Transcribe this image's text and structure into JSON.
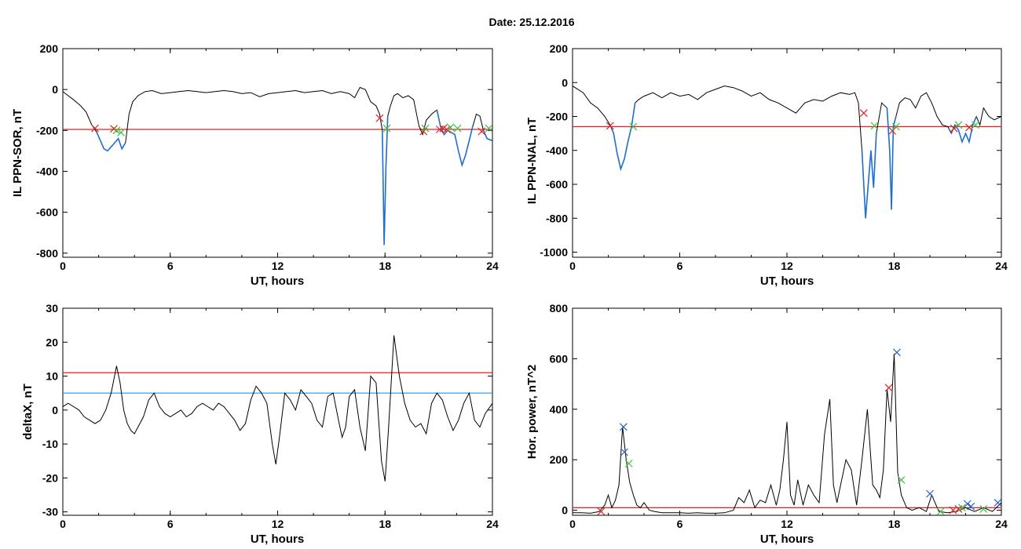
{
  "figure": {
    "title": "Date:  25.12.2016"
  },
  "colors": {
    "axis": "#000000",
    "trace": "#000000",
    "highlight": "#1f6fd0",
    "red": "#e02020",
    "green": "#40c040",
    "blue": "#2060d0",
    "cyan": "#2a8fd8"
  },
  "chart_data": [
    {
      "id": "p1",
      "type": "line",
      "xlabel": "UT, hours",
      "ylabel": "IL PPN-SOR, nT",
      "xlim": [
        0,
        24
      ],
      "ylim": [
        -820,
        200
      ],
      "xticks": [
        0,
        6,
        12,
        18,
        24
      ],
      "yticks": [
        200,
        0,
        -200,
        -400,
        -600,
        -800
      ],
      "threshold_lines": [
        {
          "y": -195,
          "color": "red"
        }
      ],
      "series": [
        {
          "x": [
            0,
            0.3,
            0.6,
            1.0,
            1.3,
            1.6,
            1.9,
            2.1,
            2.3,
            2.5,
            2.7,
            2.9,
            3.1,
            3.3,
            3.5,
            3.7,
            3.9,
            4.2,
            4.6,
            5.0,
            5.5,
            6.0,
            6.5,
            7.0,
            7.5,
            8.0,
            8.5,
            9.0,
            9.5,
            10.0,
            10.5,
            11.0,
            11.5,
            12.0,
            12.5,
            13.0,
            13.5,
            14.0,
            14.5,
            15.0,
            15.5,
            16.0,
            16.3,
            16.6,
            16.9,
            17.2,
            17.5,
            17.7,
            17.85,
            17.95,
            18.05,
            18.15,
            18.3,
            18.5,
            18.7,
            19.0,
            19.3,
            19.6,
            19.9,
            20.1,
            20.3,
            20.6,
            20.9,
            21.1,
            21.3,
            21.5,
            21.7,
            21.9,
            22.1,
            22.3,
            22.5,
            22.7,
            22.9,
            23.1,
            23.3,
            23.5,
            23.7,
            24.0
          ],
          "y": [
            -10,
            -30,
            -50,
            -80,
            -110,
            -170,
            -210,
            -250,
            -290,
            -300,
            -280,
            -260,
            -240,
            -290,
            -260,
            -120,
            -60,
            -30,
            -10,
            -5,
            -20,
            -15,
            -10,
            -5,
            -10,
            -15,
            -10,
            -5,
            -10,
            -20,
            -15,
            -35,
            -20,
            -15,
            -10,
            -5,
            -15,
            -10,
            -5,
            -20,
            -10,
            -20,
            -40,
            10,
            0,
            -60,
            -80,
            -120,
            -200,
            -760,
            -380,
            -130,
            -80,
            -30,
            -20,
            -40,
            -30,
            -50,
            -180,
            -220,
            -150,
            -120,
            -100,
            -180,
            -220,
            -200,
            -210,
            -220,
            -300,
            -370,
            -320,
            -250,
            -180,
            -120,
            -130,
            -200,
            -240,
            -250
          ],
          "highlight_ranges": [
            [
              1.9,
              3.6
            ],
            [
              17.85,
              18.25
            ],
            [
              20.9,
              22.9
            ],
            [
              23.5,
              24
            ]
          ]
        }
      ],
      "markers": [
        {
          "x": 1.8,
          "y": -190,
          "color": "red"
        },
        {
          "x": 2.85,
          "y": -192,
          "color": "red"
        },
        {
          "x": 3.0,
          "y": -200,
          "color": "green"
        },
        {
          "x": 3.25,
          "y": -210,
          "color": "green"
        },
        {
          "x": 17.7,
          "y": -140,
          "color": "red"
        },
        {
          "x": 18.1,
          "y": -190,
          "color": "green"
        },
        {
          "x": 20.15,
          "y": -205,
          "color": "red"
        },
        {
          "x": 20.25,
          "y": -190,
          "color": "green"
        },
        {
          "x": 21.05,
          "y": -195,
          "color": "red"
        },
        {
          "x": 21.25,
          "y": -190,
          "color": "red"
        },
        {
          "x": 21.45,
          "y": -195,
          "color": "red"
        },
        {
          "x": 21.65,
          "y": -185,
          "color": "green"
        },
        {
          "x": 22.05,
          "y": -190,
          "color": "green"
        },
        {
          "x": 23.4,
          "y": -205,
          "color": "red"
        },
        {
          "x": 23.8,
          "y": -190,
          "color": "green"
        }
      ]
    },
    {
      "id": "p2",
      "type": "line",
      "xlabel": "UT, hours",
      "ylabel": "IL PPN-NAL, nT",
      "xlim": [
        0,
        24
      ],
      "ylim": [
        -1030,
        200
      ],
      "xticks": [
        0,
        6,
        12,
        18,
        24
      ],
      "yticks": [
        200,
        0,
        -200,
        -400,
        -600,
        -800,
        -1000
      ],
      "threshold_lines": [
        {
          "y": -260,
          "color": "red"
        }
      ],
      "series": [
        {
          "x": [
            0,
            0.3,
            0.6,
            1.0,
            1.4,
            1.8,
            2.1,
            2.3,
            2.5,
            2.7,
            2.9,
            3.1,
            3.3,
            3.5,
            3.7,
            4.0,
            4.5,
            5.0,
            5.5,
            6.0,
            6.5,
            7.0,
            7.5,
            8.0,
            8.5,
            9.0,
            9.5,
            10.0,
            10.5,
            11.0,
            11.5,
            12.0,
            12.5,
            13.0,
            13.5,
            14.0,
            14.5,
            15.0,
            15.5,
            15.8,
            16.0,
            16.2,
            16.4,
            16.55,
            16.7,
            16.85,
            17.0,
            17.3,
            17.6,
            17.75,
            17.85,
            17.95,
            18.1,
            18.3,
            18.6,
            18.9,
            19.2,
            19.5,
            19.8,
            20.1,
            20.4,
            20.7,
            21.0,
            21.2,
            21.4,
            21.6,
            21.8,
            22.0,
            22.2,
            22.4,
            22.6,
            22.8,
            23.0,
            23.3,
            23.6,
            24.0
          ],
          "y": [
            -20,
            -40,
            -60,
            -120,
            -150,
            -200,
            -250,
            -300,
            -420,
            -510,
            -450,
            -350,
            -260,
            -120,
            -100,
            -80,
            -60,
            -90,
            -60,
            -80,
            -70,
            -100,
            -60,
            -40,
            -20,
            -30,
            -50,
            -80,
            -60,
            -100,
            -120,
            -150,
            -180,
            -120,
            -100,
            -110,
            -80,
            -60,
            -70,
            -60,
            -120,
            -400,
            -800,
            -600,
            -400,
            -620,
            -300,
            -120,
            -150,
            -400,
            -750,
            -260,
            -200,
            -120,
            -90,
            -100,
            -150,
            -80,
            -60,
            -120,
            -200,
            -250,
            -260,
            -300,
            -250,
            -280,
            -350,
            -300,
            -350,
            -250,
            -200,
            -250,
            -150,
            -200,
            -220,
            -200
          ],
          "highlight_ranges": [
            [
              2.0,
              3.6
            ],
            [
              16.1,
              17.1
            ],
            [
              17.6,
              18.1
            ],
            [
              21.2,
              22.7
            ]
          ]
        }
      ],
      "markers": [
        {
          "x": 2.1,
          "y": -255,
          "color": "red"
        },
        {
          "x": 3.4,
          "y": -260,
          "color": "green"
        },
        {
          "x": 16.3,
          "y": -180,
          "color": "red"
        },
        {
          "x": 16.9,
          "y": -255,
          "color": "green"
        },
        {
          "x": 17.9,
          "y": -285,
          "color": "red"
        },
        {
          "x": 18.1,
          "y": -260,
          "color": "green"
        },
        {
          "x": 21.35,
          "y": -270,
          "color": "red"
        },
        {
          "x": 21.6,
          "y": -250,
          "color": "green"
        },
        {
          "x": 22.2,
          "y": -265,
          "color": "red"
        },
        {
          "x": 22.55,
          "y": -250,
          "color": "green"
        }
      ]
    },
    {
      "id": "p3",
      "type": "line",
      "xlabel": "UT, hours",
      "ylabel": "deltaX, nT",
      "xlim": [
        0,
        24
      ],
      "ylim": [
        -31,
        30
      ],
      "xticks": [
        0,
        6,
        12,
        18,
        24
      ],
      "yticks": [
        30,
        20,
        10,
        0,
        -10,
        -20,
        -30
      ],
      "threshold_lines": [
        {
          "y": 11,
          "color": "red"
        },
        {
          "y": 5,
          "color": "cyan"
        }
      ],
      "series": [
        {
          "x": [
            0,
            0.3,
            0.6,
            0.9,
            1.2,
            1.5,
            1.8,
            2.1,
            2.4,
            2.7,
            3.0,
            3.2,
            3.4,
            3.6,
            3.8,
            4.0,
            4.2,
            4.5,
            4.8,
            5.1,
            5.4,
            5.7,
            6.0,
            6.3,
            6.6,
            6.9,
            7.2,
            7.5,
            7.8,
            8.1,
            8.4,
            8.7,
            9.0,
            9.3,
            9.6,
            9.9,
            10.2,
            10.5,
            10.8,
            11.1,
            11.4,
            11.7,
            11.9,
            12.1,
            12.4,
            12.7,
            13.0,
            13.3,
            13.6,
            13.9,
            14.2,
            14.5,
            14.8,
            15.1,
            15.4,
            15.6,
            15.8,
            16.0,
            16.3,
            16.6,
            16.9,
            17.2,
            17.5,
            17.8,
            18.0,
            18.2,
            18.5,
            18.8,
            19.1,
            19.4,
            19.7,
            20.0,
            20.3,
            20.6,
            20.9,
            21.2,
            21.5,
            21.8,
            22.1,
            22.4,
            22.7,
            23.0,
            23.3,
            23.6,
            24.0
          ],
          "y": [
            1,
            2,
            1,
            0,
            -2,
            -3,
            -4,
            -3,
            0,
            5,
            13,
            8,
            0,
            -4,
            -6,
            -7,
            -5,
            -2,
            3,
            5,
            1,
            -1,
            -2,
            -1,
            0,
            -2,
            -1,
            1,
            2,
            1,
            0,
            2,
            1,
            -1,
            -3,
            -6,
            -4,
            3,
            7,
            5,
            2,
            -10,
            -16,
            -8,
            5,
            3,
            0,
            6,
            4,
            2,
            -3,
            -5,
            4,
            5,
            -3,
            -8,
            -5,
            4,
            6,
            -5,
            -12,
            10,
            8,
            -15,
            -21,
            -5,
            22,
            10,
            2,
            -3,
            -5,
            -4,
            -7,
            2,
            5,
            3,
            -2,
            -6,
            -3,
            2,
            5,
            -3,
            -5,
            -1,
            2
          ]
        }
      ],
      "markers": []
    },
    {
      "id": "p4",
      "type": "line",
      "xlabel": "UT, hours",
      "ylabel": "Hor. power, nT^2",
      "xlim": [
        0,
        24
      ],
      "ylim": [
        -20,
        800
      ],
      "xticks": [
        0,
        6,
        12,
        18,
        24
      ],
      "yticks": [
        800,
        600,
        400,
        200,
        0
      ],
      "threshold_lines": [
        {
          "y": 10,
          "color": "red"
        }
      ],
      "series": [
        {
          "x": [
            0,
            0.5,
            1.0,
            1.5,
            1.8,
            2.0,
            2.2,
            2.4,
            2.6,
            2.8,
            3.0,
            3.2,
            3.4,
            3.6,
            3.8,
            4.0,
            4.3,
            4.6,
            5.0,
            5.5,
            6.0,
            6.5,
            7.0,
            7.5,
            8.0,
            8.5,
            9.0,
            9.3,
            9.6,
            9.9,
            10.2,
            10.5,
            10.8,
            11.1,
            11.4,
            11.6,
            11.8,
            12.0,
            12.2,
            12.4,
            12.6,
            12.9,
            13.2,
            13.5,
            13.8,
            14.1,
            14.4,
            14.6,
            14.8,
            15.0,
            15.3,
            15.6,
            15.9,
            16.2,
            16.5,
            16.8,
            17.0,
            17.2,
            17.4,
            17.6,
            17.8,
            18.0,
            18.2,
            18.4,
            18.7,
            19.0,
            19.4,
            19.8,
            20.1,
            20.5,
            21.0,
            21.5,
            22.0,
            22.5,
            23.0,
            23.5,
            24.0
          ],
          "y": [
            -10,
            -10,
            -12,
            -5,
            20,
            60,
            10,
            40,
            100,
            330,
            200,
            110,
            60,
            20,
            10,
            30,
            0,
            -5,
            -10,
            -10,
            -10,
            -12,
            -10,
            -12,
            -12,
            -10,
            0,
            50,
            30,
            80,
            10,
            40,
            30,
            100,
            20,
            80,
            200,
            350,
            60,
            20,
            120,
            20,
            100,
            60,
            30,
            300,
            440,
            100,
            30,
            100,
            200,
            160,
            20,
            200,
            400,
            100,
            80,
            50,
            160,
            480,
            350,
            620,
            150,
            60,
            10,
            0,
            10,
            -5,
            60,
            -5,
            -10,
            -5,
            10,
            -5,
            10,
            -5,
            30
          ]
        }
      ],
      "markers": [
        {
          "x": 1.6,
          "y": -5,
          "color": "red"
        },
        {
          "x": 2.85,
          "y": 330,
          "color": "blue"
        },
        {
          "x": 2.9,
          "y": 230,
          "color": "blue"
        },
        {
          "x": 3.15,
          "y": 185,
          "color": "green"
        },
        {
          "x": 17.7,
          "y": 485,
          "color": "red"
        },
        {
          "x": 18.15,
          "y": 625,
          "color": "blue"
        },
        {
          "x": 18.4,
          "y": 120,
          "color": "green"
        },
        {
          "x": 20.0,
          "y": 65,
          "color": "blue"
        },
        {
          "x": 20.6,
          "y": -5,
          "color": "green"
        },
        {
          "x": 21.3,
          "y": 0,
          "color": "red"
        },
        {
          "x": 21.6,
          "y": 5,
          "color": "red"
        },
        {
          "x": 21.8,
          "y": 10,
          "color": "green"
        },
        {
          "x": 22.1,
          "y": 25,
          "color": "blue"
        },
        {
          "x": 22.3,
          "y": 15,
          "color": "blue"
        },
        {
          "x": 23.0,
          "y": 5,
          "color": "green"
        },
        {
          "x": 23.8,
          "y": 30,
          "color": "blue"
        }
      ]
    }
  ]
}
